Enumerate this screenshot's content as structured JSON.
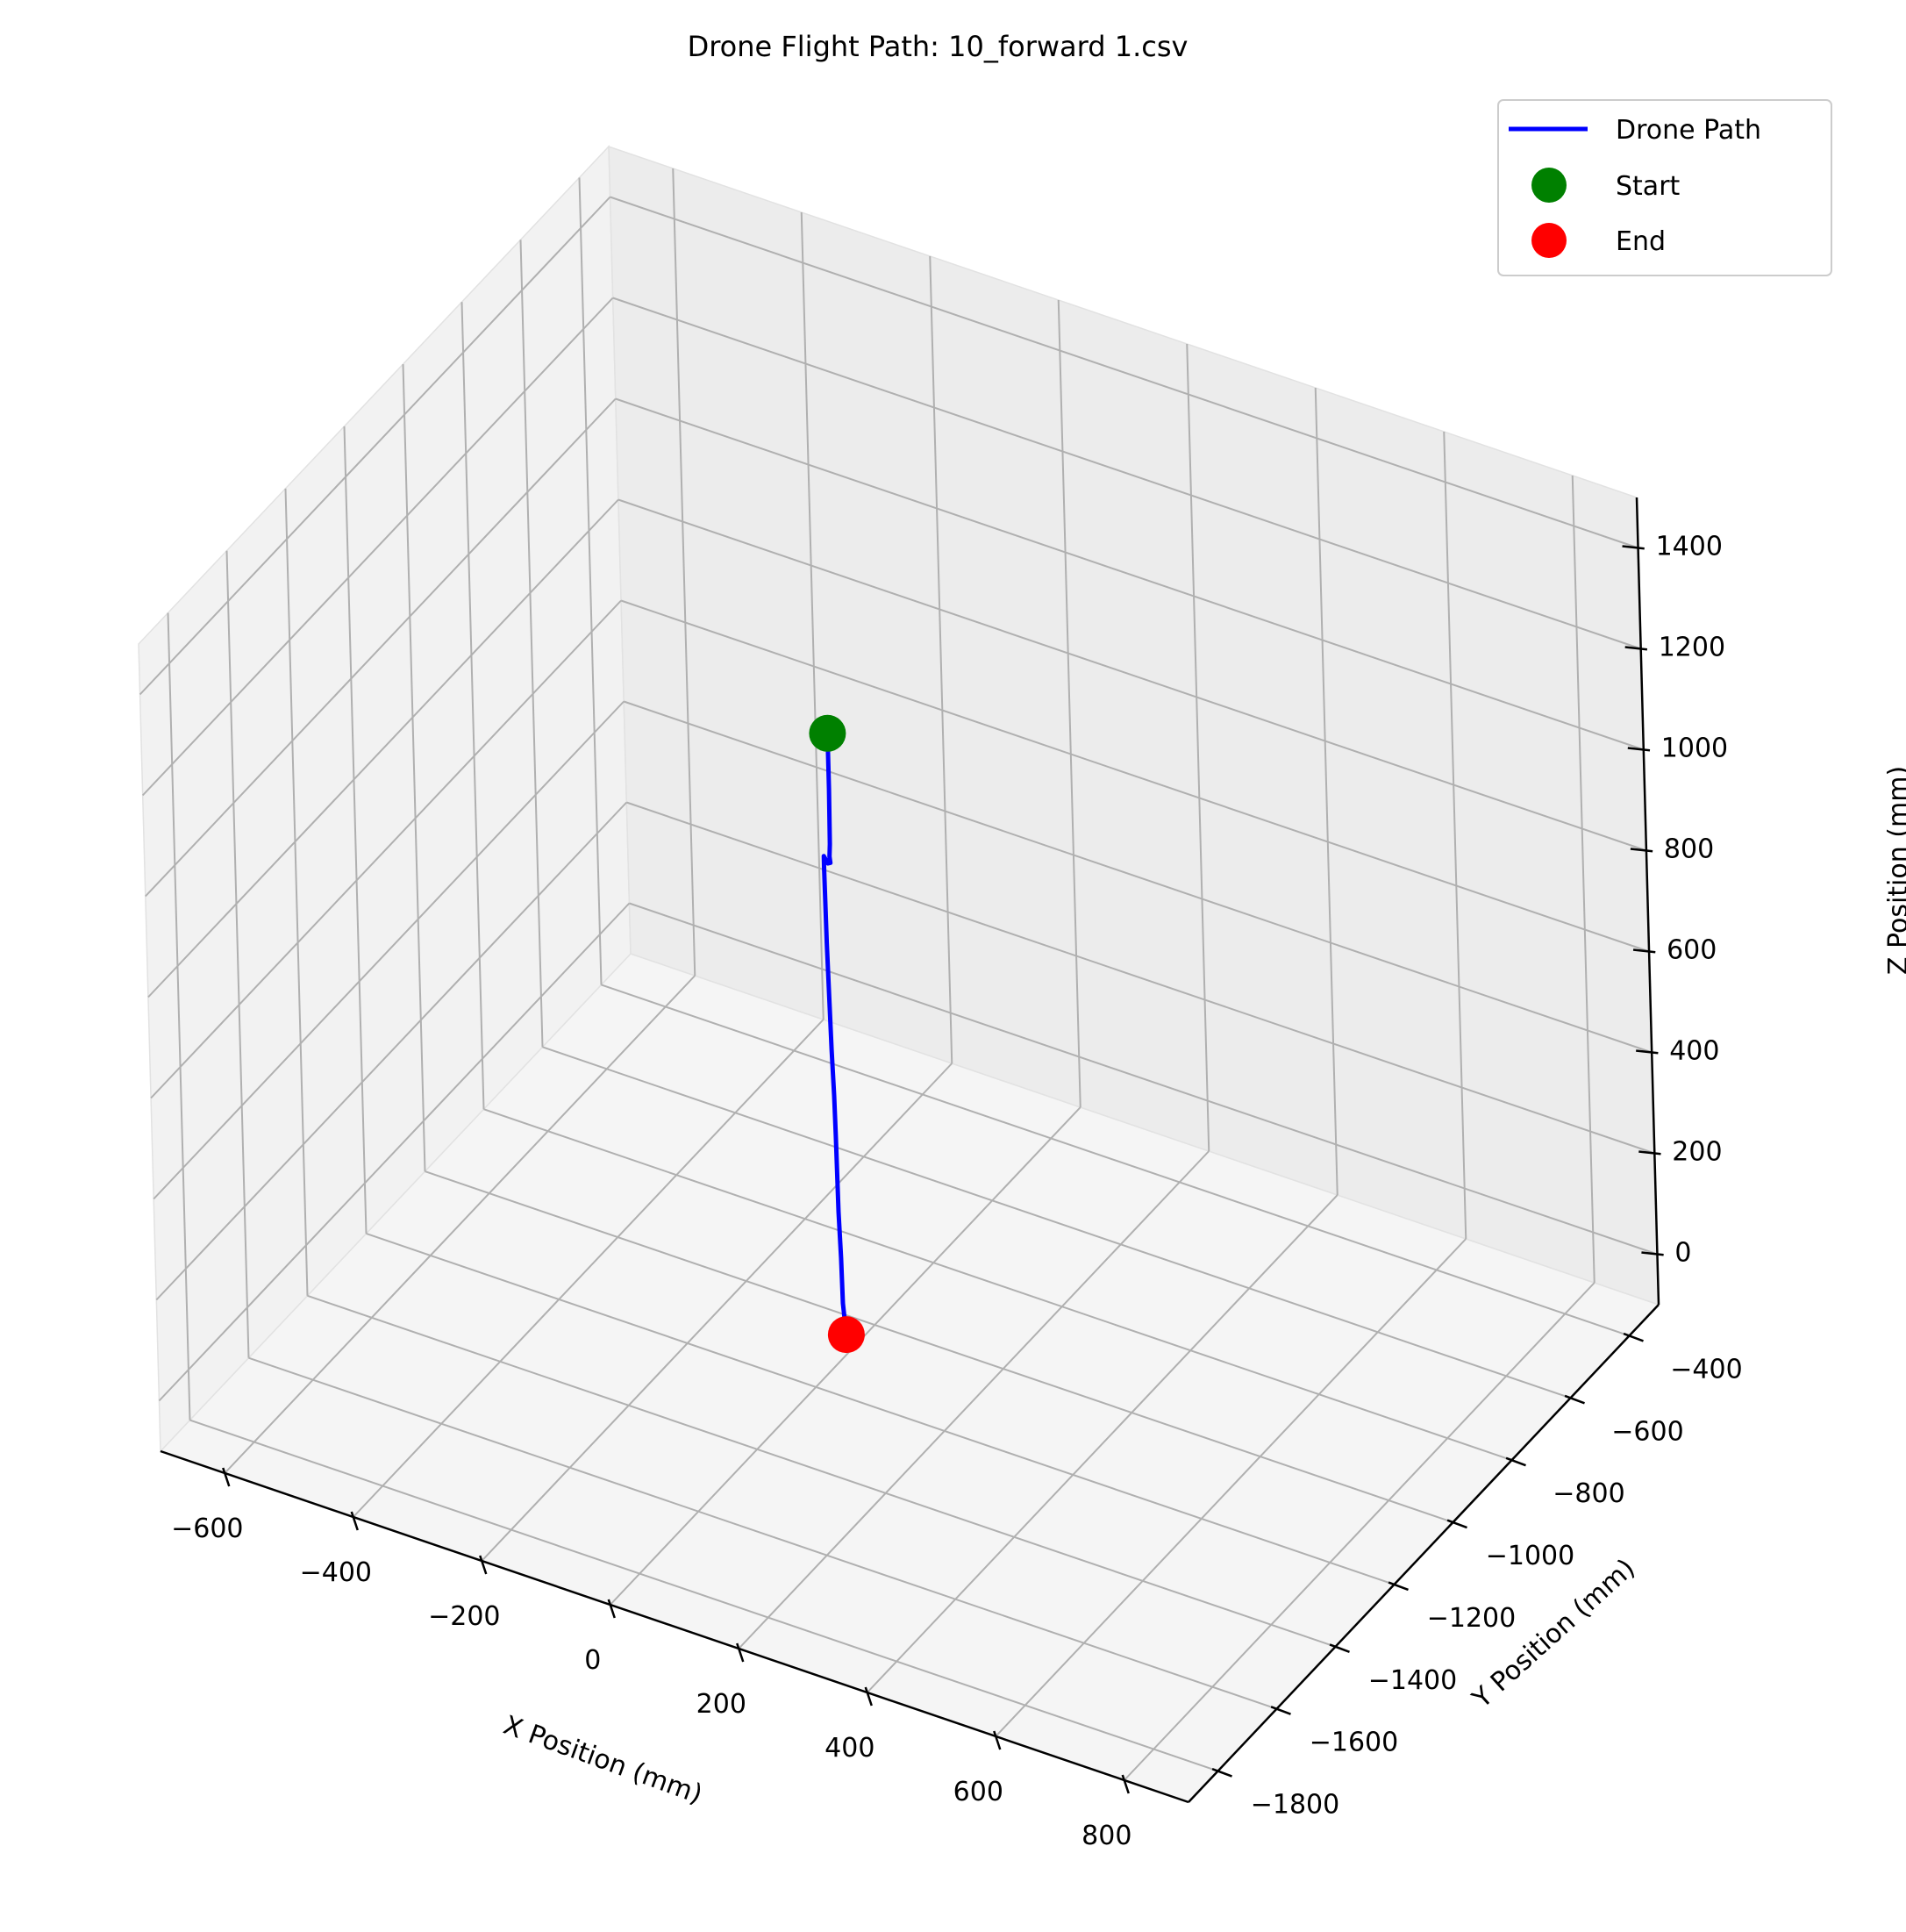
{
  "chart_data": {
    "type": "line",
    "projection": "3d",
    "title": "Drone Flight Path: 10_forward 1.csv",
    "xlabel": "X Position (mm)",
    "ylabel": "Y Position (mm)",
    "zlabel": "Z Position (mm)",
    "xlim": [
      -700,
      900
    ],
    "ylim": [
      -1900,
      -300
    ],
    "zlim": [
      -100,
      1500
    ],
    "xticks": [
      -600,
      -400,
      -200,
      0,
      200,
      400,
      600,
      800
    ],
    "xtick_labels": [
      "−600",
      "−400",
      "−200",
      "0",
      "200",
      "400",
      "600",
      "800"
    ],
    "yticks": [
      -1800,
      -1600,
      -1400,
      -1200,
      -1000,
      -800,
      -600,
      -400
    ],
    "ytick_labels": [
      "−1800",
      "−1600",
      "−1400",
      "−1200",
      "−1000",
      "−800",
      "−600",
      "−400"
    ],
    "zticks": [
      0,
      200,
      400,
      600,
      800,
      1000,
      1200,
      1400
    ],
    "ztick_labels": [
      "0",
      "200",
      "400",
      "600",
      "800",
      "1000",
      "1200",
      "1400"
    ],
    "grid": true,
    "legend_position": "top-right",
    "series": [
      {
        "name": "Drone Path",
        "kind": "line",
        "color": "#0000ff",
        "points": [
          [
            8,
            -1120,
            1150
          ],
          [
            8,
            -1120,
            1040
          ],
          [
            7,
            -1120,
            930
          ],
          [
            6,
            -1120,
            905
          ],
          [
            7,
            -1120,
            893
          ],
          [
            3,
            -1120,
            890
          ],
          [
            -3,
            -1120,
            902
          ],
          [
            -3,
            -1120,
            880
          ],
          [
            -2,
            -1120,
            730
          ],
          [
            1,
            -1120,
            520
          ],
          [
            3,
            -1120,
            430
          ],
          [
            4,
            -1120,
            350
          ],
          [
            5,
            -1120,
            200
          ],
          [
            7,
            -1120,
            110
          ],
          [
            8,
            -1120,
            20
          ],
          [
            12,
            -1120,
            -40
          ]
        ]
      },
      {
        "name": "Start",
        "kind": "scatter",
        "color": "#008000",
        "points": [
          [
            8,
            -1120,
            1150
          ]
        ]
      },
      {
        "name": "End",
        "kind": "scatter",
        "color": "#ff0000",
        "points": [
          [
            12,
            -1120,
            -40
          ]
        ]
      }
    ],
    "pane_colors": {
      "left": "#f2f2f2",
      "right": "#ececec",
      "floor": "#f5f5f5",
      "grid": "#b0b0b0",
      "edge": "#e2e2e2"
    }
  }
}
